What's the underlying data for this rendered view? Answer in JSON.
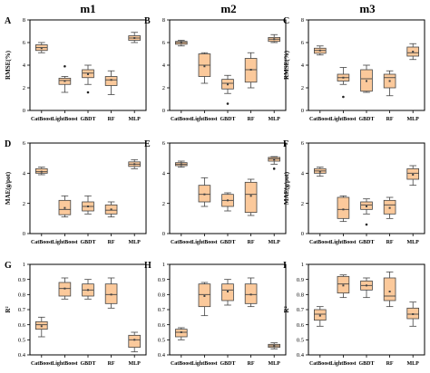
{
  "column_titles": [
    "m1",
    "m2",
    "m3"
  ],
  "colors": {
    "box_fill": "#fbc99b",
    "box_stroke": "#444444",
    "frame": "#000000",
    "outlier": "#222222"
  },
  "chart_data": [
    {
      "type": "box",
      "letter": "A",
      "ylabel": "RMSE(%)",
      "ylim": [
        0,
        8
      ],
      "yticks": [
        0,
        2,
        4,
        6,
        8
      ],
      "categories": [
        "CatBoost",
        "LightBoost",
        "GBDT",
        "RF",
        "MLP"
      ],
      "boxes": [
        {
          "min": 5.1,
          "q1": 5.3,
          "median": 5.55,
          "q3": 5.8,
          "max": 6.0,
          "mean": 5.5,
          "outliers": []
        },
        {
          "min": 1.6,
          "q1": 2.3,
          "median": 2.65,
          "q3": 2.85,
          "max": 3.0,
          "mean": 2.6,
          "outliers": [
            3.9
          ]
        },
        {
          "min": 2.3,
          "q1": 2.9,
          "median": 3.3,
          "q3": 3.6,
          "max": 4.0,
          "mean": 3.2,
          "outliers": [
            1.6
          ]
        },
        {
          "min": 1.4,
          "q1": 2.2,
          "median": 2.7,
          "q3": 3.0,
          "max": 3.5,
          "mean": 2.7,
          "outliers": []
        },
        {
          "min": 6.0,
          "q1": 6.2,
          "median": 6.4,
          "q3": 6.6,
          "max": 6.9,
          "mean": 6.4,
          "outliers": []
        }
      ]
    },
    {
      "type": "box",
      "letter": "B",
      "ylabel": "",
      "ylim": [
        0,
        8
      ],
      "yticks": [
        0,
        2,
        4,
        6,
        8
      ],
      "categories": [
        "CatBoost",
        "LightBoost",
        "GBDT",
        "RF",
        "MLP"
      ],
      "boxes": [
        {
          "min": 5.7,
          "q1": 5.85,
          "median": 6.0,
          "q3": 6.1,
          "max": 6.2,
          "mean": 6.0,
          "outliers": []
        },
        {
          "min": 2.4,
          "q1": 3.0,
          "median": 4.0,
          "q3": 5.0,
          "max": 5.1,
          "mean": 3.9,
          "outliers": []
        },
        {
          "min": 1.5,
          "q1": 1.9,
          "median": 2.4,
          "q3": 2.75,
          "max": 3.1,
          "mean": 2.3,
          "outliers": [
            0.6
          ]
        },
        {
          "min": 2.0,
          "q1": 2.5,
          "median": 3.6,
          "q3": 4.6,
          "max": 5.1,
          "mean": 3.6,
          "outliers": []
        },
        {
          "min": 6.0,
          "q1": 6.1,
          "median": 6.3,
          "q3": 6.45,
          "max": 6.7,
          "mean": 6.3,
          "outliers": []
        }
      ]
    },
    {
      "type": "box",
      "letter": "C",
      "ylabel": "RMSE(%)",
      "ylim": [
        0,
        8
      ],
      "yticks": [
        0,
        2,
        4,
        6,
        8
      ],
      "categories": [
        "CatBoost",
        "LightBoost",
        "GBDT",
        "RF",
        "MLP"
      ],
      "boxes": [
        {
          "min": 4.9,
          "q1": 5.05,
          "median": 5.3,
          "q3": 5.5,
          "max": 5.7,
          "mean": 5.3,
          "outliers": []
        },
        {
          "min": 2.3,
          "q1": 2.6,
          "median": 2.9,
          "q3": 3.2,
          "max": 3.8,
          "mean": 2.9,
          "outliers": [
            1.2
          ]
        },
        {
          "min": 1.6,
          "q1": 1.7,
          "median": 2.8,
          "q3": 3.6,
          "max": 4.0,
          "mean": 2.6,
          "outliers": []
        },
        {
          "min": 1.3,
          "q1": 2.0,
          "median": 2.9,
          "q3": 3.2,
          "max": 3.5,
          "mean": 2.6,
          "outliers": []
        },
        {
          "min": 4.5,
          "q1": 4.8,
          "median": 5.1,
          "q3": 5.6,
          "max": 5.9,
          "mean": 5.2,
          "outliers": []
        }
      ]
    },
    {
      "type": "box",
      "letter": "D",
      "ylabel": "MAE(g/pot)",
      "ylim": [
        0,
        6
      ],
      "yticks": [
        0,
        2,
        4,
        6
      ],
      "categories": [
        "CatBoost",
        "LightBoost",
        "GBDT",
        "RF",
        "MLP"
      ],
      "boxes": [
        {
          "min": 3.9,
          "q1": 4.0,
          "median": 4.1,
          "q3": 4.3,
          "max": 4.4,
          "mean": 4.1,
          "outliers": []
        },
        {
          "min": 1.1,
          "q1": 1.25,
          "median": 1.6,
          "q3": 2.2,
          "max": 2.5,
          "mean": 1.7,
          "outliers": []
        },
        {
          "min": 1.3,
          "q1": 1.5,
          "median": 1.8,
          "q3": 2.1,
          "max": 2.5,
          "mean": 1.8,
          "outliers": []
        },
        {
          "min": 1.1,
          "q1": 1.3,
          "median": 1.55,
          "q3": 1.9,
          "max": 2.1,
          "mean": 1.6,
          "outliers": []
        },
        {
          "min": 4.3,
          "q1": 4.45,
          "median": 4.6,
          "q3": 4.75,
          "max": 4.9,
          "mean": 4.6,
          "outliers": []
        }
      ]
    },
    {
      "type": "box",
      "letter": "E",
      "ylabel": "",
      "ylim": [
        0,
        6
      ],
      "yticks": [
        0,
        2,
        4,
        6
      ],
      "categories": [
        "CatBoost",
        "LightBoost",
        "GBDT",
        "RF",
        "MLP"
      ],
      "boxes": [
        {
          "min": 4.4,
          "q1": 4.5,
          "median": 4.6,
          "q3": 4.7,
          "max": 4.8,
          "mean": 4.6,
          "outliers": []
        },
        {
          "min": 1.8,
          "q1": 2.1,
          "median": 2.6,
          "q3": 3.2,
          "max": 3.7,
          "mean": 2.6,
          "outliers": []
        },
        {
          "min": 1.5,
          "q1": 1.8,
          "median": 2.2,
          "q3": 2.6,
          "max": 2.7,
          "mean": 2.2,
          "outliers": []
        },
        {
          "min": 1.2,
          "q1": 1.4,
          "median": 2.6,
          "q3": 3.4,
          "max": 3.6,
          "mean": 2.5,
          "outliers": []
        },
        {
          "min": 4.6,
          "q1": 4.8,
          "median": 4.95,
          "q3": 5.05,
          "max": 5.1,
          "mean": 4.9,
          "outliers": [
            4.3
          ]
        }
      ]
    },
    {
      "type": "box",
      "letter": "F",
      "ylabel": "MAE(g/pot)",
      "ylim": [
        0,
        6
      ],
      "yticks": [
        0,
        2,
        4,
        6
      ],
      "categories": [
        "CatBoost",
        "LightBoost",
        "GBDT",
        "RF",
        "MLP"
      ],
      "boxes": [
        {
          "min": 3.8,
          "q1": 4.0,
          "median": 4.15,
          "q3": 4.3,
          "max": 4.4,
          "mean": 4.1,
          "outliers": []
        },
        {
          "min": 0.8,
          "q1": 1.0,
          "median": 1.6,
          "q3": 2.4,
          "max": 2.5,
          "mean": 1.6,
          "outliers": []
        },
        {
          "min": 1.3,
          "q1": 1.6,
          "median": 1.9,
          "q3": 2.1,
          "max": 2.3,
          "mean": 1.8,
          "outliers": [
            0.6
          ]
        },
        {
          "min": 1.0,
          "q1": 1.3,
          "median": 1.9,
          "q3": 2.2,
          "max": 2.4,
          "mean": 1.7,
          "outliers": []
        },
        {
          "min": 3.2,
          "q1": 3.6,
          "median": 4.0,
          "q3": 4.3,
          "max": 4.5,
          "mean": 3.9,
          "outliers": []
        }
      ]
    },
    {
      "type": "box",
      "letter": "G",
      "ylabel": "R²",
      "ylim": [
        0.4,
        1.0
      ],
      "yticks": [
        0.4,
        0.5,
        0.6,
        0.7,
        0.8,
        0.9,
        1.0
      ],
      "categories": [
        "CatBoost",
        "LightBoost",
        "GBDT",
        "RF",
        "MLP"
      ],
      "boxes": [
        {
          "min": 0.52,
          "q1": 0.57,
          "median": 0.6,
          "q3": 0.62,
          "max": 0.65,
          "mean": 0.59,
          "outliers": []
        },
        {
          "min": 0.77,
          "q1": 0.79,
          "median": 0.84,
          "q3": 0.88,
          "max": 0.91,
          "mean": 0.84,
          "outliers": []
        },
        {
          "min": 0.77,
          "q1": 0.79,
          "median": 0.83,
          "q3": 0.87,
          "max": 0.9,
          "mean": 0.83,
          "outliers": []
        },
        {
          "min": 0.71,
          "q1": 0.74,
          "median": 0.8,
          "q3": 0.87,
          "max": 0.91,
          "mean": 0.8,
          "outliers": []
        },
        {
          "min": 0.42,
          "q1": 0.45,
          "median": 0.5,
          "q3": 0.53,
          "max": 0.55,
          "mean": 0.5,
          "outliers": []
        }
      ]
    },
    {
      "type": "box",
      "letter": "H",
      "ylabel": "",
      "ylim": [
        0.4,
        1.0
      ],
      "yticks": [
        0.4,
        0.5,
        0.6,
        0.7,
        0.8,
        0.9,
        1.0
      ],
      "categories": [
        "CatBoost",
        "LightBoost",
        "GBDT",
        "RF",
        "MLP"
      ],
      "boxes": [
        {
          "min": 0.5,
          "q1": 0.52,
          "median": 0.55,
          "q3": 0.57,
          "max": 0.58,
          "mean": 0.55,
          "outliers": []
        },
        {
          "min": 0.66,
          "q1": 0.72,
          "median": 0.8,
          "q3": 0.87,
          "max": 0.88,
          "mean": 0.79,
          "outliers": []
        },
        {
          "min": 0.73,
          "q1": 0.76,
          "median": 0.83,
          "q3": 0.87,
          "max": 0.9,
          "mean": 0.82,
          "outliers": []
        },
        {
          "min": 0.72,
          "q1": 0.74,
          "median": 0.8,
          "q3": 0.87,
          "max": 0.91,
          "mean": 0.8,
          "outliers": []
        },
        {
          "min": 0.44,
          "q1": 0.45,
          "median": 0.46,
          "q3": 0.47,
          "max": 0.48,
          "mean": 0.46,
          "outliers": []
        }
      ]
    },
    {
      "type": "box",
      "letter": "I",
      "ylabel": "R²",
      "ylim": [
        0.4,
        1.0
      ],
      "yticks": [
        0.4,
        0.5,
        0.6,
        0.7,
        0.8,
        0.9,
        1.0
      ],
      "categories": [
        "CatBoost",
        "LightBoost",
        "GBDT",
        "RF",
        "MLP"
      ],
      "boxes": [
        {
          "min": 0.59,
          "q1": 0.63,
          "median": 0.67,
          "q3": 0.7,
          "max": 0.72,
          "mean": 0.66,
          "outliers": []
        },
        {
          "min": 0.78,
          "q1": 0.81,
          "median": 0.87,
          "q3": 0.92,
          "max": 0.93,
          "mean": 0.86,
          "outliers": []
        },
        {
          "min": 0.78,
          "q1": 0.83,
          "median": 0.86,
          "q3": 0.89,
          "max": 0.91,
          "mean": 0.86,
          "outliers": []
        },
        {
          "min": 0.72,
          "q1": 0.76,
          "median": 0.79,
          "q3": 0.91,
          "max": 0.95,
          "mean": 0.82,
          "outliers": []
        },
        {
          "min": 0.59,
          "q1": 0.64,
          "median": 0.67,
          "q3": 0.71,
          "max": 0.75,
          "mean": 0.67,
          "outliers": []
        }
      ]
    }
  ]
}
